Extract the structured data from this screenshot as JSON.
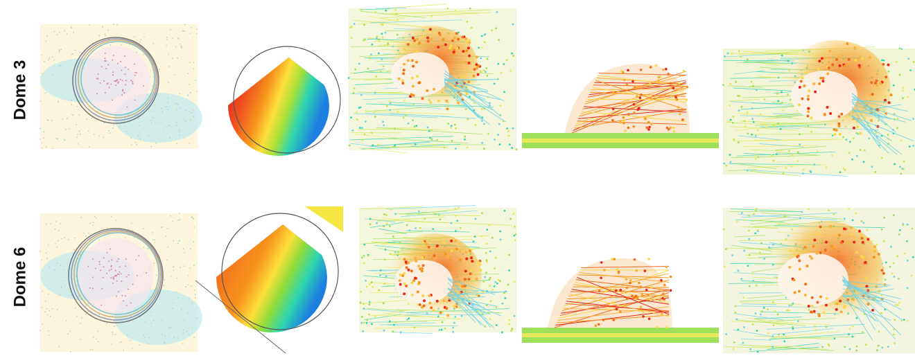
{
  "rows": [
    {
      "label": "Dome 3"
    },
    {
      "label": "Dome 6"
    }
  ]
}
